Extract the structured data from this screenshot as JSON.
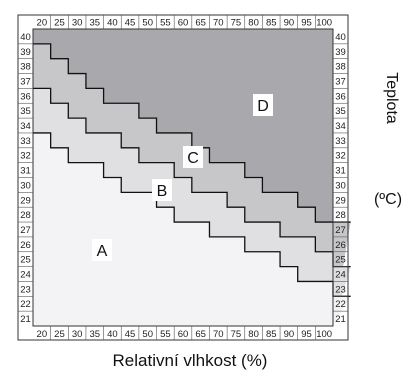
{
  "chart_data": {
    "type": "heatmap",
    "x_ticks": [
      "20",
      "25",
      "30",
      "35",
      "40",
      "45",
      "50",
      "55",
      "60",
      "65",
      "70",
      "75",
      "80",
      "85",
      "90",
      "95",
      "100"
    ],
    "y_ticks": [
      "40",
      "39",
      "38",
      "37",
      "36",
      "35",
      "34",
      "33",
      "32",
      "31",
      "30",
      "29",
      "28",
      "27",
      "26",
      "25",
      "24",
      "23",
      "22",
      "21"
    ],
    "xlabel": "Relativní vlhkost (%)",
    "ylabel": "Teplota",
    "yunit": "(ºC)",
    "zones": [
      {
        "label": "A",
        "color": "#f3f3f5"
      },
      {
        "label": "B",
        "color": "#e0e0e2"
      },
      {
        "label": "C",
        "color": "#c7c7ca"
      },
      {
        "label": "D",
        "color": "#a9a9ad"
      }
    ],
    "boundaries": {
      "A_B": [
        33,
        32,
        31,
        31,
        30,
        29,
        29,
        28,
        27,
        27,
        26,
        26,
        25,
        25,
        24,
        23,
        23,
        22
      ],
      "B_C": [
        36,
        35,
        34,
        33,
        33,
        32,
        31,
        31,
        30,
        29,
        29,
        28,
        27,
        27,
        26,
        26,
        25,
        24
      ],
      "C_D": [
        39,
        38,
        37,
        36,
        35,
        35,
        34,
        33,
        33,
        32,
        31,
        31,
        30,
        29,
        29,
        28,
        27,
        27
      ]
    },
    "xlim": [
      20,
      100
    ],
    "ylim": [
      21,
      40
    ]
  }
}
